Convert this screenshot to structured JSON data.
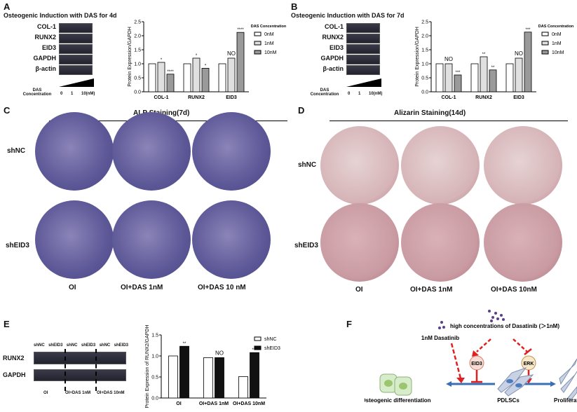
{
  "panelA": {
    "letter": "A",
    "title": "Osteogenic Induction with DAS for 4d",
    "blot_labels": [
      "COL-1",
      "RUNX2",
      "EID3",
      "GAPDH",
      "β-actin"
    ],
    "das_label": "DAS Concentration",
    "doses": [
      "0",
      "1",
      "10(nM)"
    ]
  },
  "panelB": {
    "letter": "B",
    "title": "Osteogenic Induction with DAS for 7d",
    "blot_labels": [
      "COL-1",
      "RUNX2",
      "EID3",
      "GAPDH",
      "β-actin"
    ],
    "das_label": "DAS Concentration",
    "doses": [
      "0",
      "1",
      "10(nM)"
    ]
  },
  "panelC": {
    "letter": "C",
    "title": "ALP Staining(7d)",
    "rows": [
      "shNC",
      "shEID3"
    ],
    "cols": [
      "OI",
      "OI+DAS 1nM",
      "OI+DAS 10 nM"
    ]
  },
  "panelD": {
    "letter": "D",
    "title": "Alizarin Staining(14d)",
    "rows": [
      "shNC",
      "shEID3"
    ],
    "cols": [
      "OI",
      "OI+DAS 1nM",
      "OI+DAS 10nM"
    ]
  },
  "panelE": {
    "letter": "E",
    "lanes": [
      "shNC",
      "shEID3",
      "shNC",
      "shEID3",
      "shNC",
      "shEID3"
    ],
    "blot_labels": [
      "RUNX2",
      "GAPDH"
    ],
    "groups": [
      "OI",
      "OI+DAS 1nM",
      "OI+DAS 10nM"
    ]
  },
  "panelF": {
    "letter": "F",
    "low": "1nM Dasatinib",
    "high": "high concentrations of Dasatinib (＞1nM)",
    "eid3": "EID3",
    "erk": "ERK",
    "osteo": "Osteogenic differentiation",
    "pdlsc": "PDLSCs",
    "prolif": "Proliferation"
  },
  "colors": {
    "white_bar": "#ffffff",
    "light_bar": "#e0e0e0",
    "dark_bar": "#9a9a9a",
    "black_bar": "#111111",
    "arrow_red": "#e02020",
    "arrow_blue": "#3a6fb5"
  },
  "chart_data": [
    {
      "type": "bar",
      "ylabel": "Protein Expression/GAPDH",
      "ylim": [
        0,
        2.5
      ],
      "yticks": [
        "0.0",
        "0.5",
        "1.0",
        "1.5",
        "2.0",
        "2.5"
      ],
      "categories": [
        "COL-1",
        "RUNX2",
        "EID3"
      ],
      "legend_title": "DAS Concentration",
      "legend": "right",
      "series": [
        {
          "name": "0nM",
          "values": [
            1.0,
            1.0,
            1.0
          ]
        },
        {
          "name": "1nM",
          "values": [
            1.05,
            1.2,
            1.2
          ]
        },
        {
          "name": "10nM",
          "values": [
            0.63,
            0.84,
            2.12
          ]
        }
      ],
      "annotations": [
        [
          "",
          "*",
          "****"
        ],
        [
          "",
          "*",
          "*"
        ],
        [
          "",
          "NO",
          "****"
        ]
      ]
    },
    {
      "type": "bar",
      "ylabel": "Protein Expression/GAPDH",
      "ylim": [
        0,
        2.5
      ],
      "yticks": [
        "0.0",
        "0.5",
        "1.0",
        "1.5",
        "2.0",
        "2.5"
      ],
      "categories": [
        "COL-1",
        "RUNX2",
        "EID3"
      ],
      "legend_title": "DAS Concentration",
      "legend": "right",
      "series": [
        {
          "name": "0nM",
          "values": [
            1.0,
            1.0,
            1.0
          ]
        },
        {
          "name": "1nM",
          "values": [
            1.0,
            1.25,
            1.2
          ]
        },
        {
          "name": "10nM",
          "values": [
            0.6,
            0.78,
            2.13
          ]
        }
      ],
      "annotations": [
        [
          "",
          "NO",
          "***"
        ],
        [
          "",
          "**",
          "**"
        ],
        [
          "",
          "NO",
          "***"
        ]
      ]
    },
    {
      "type": "bar",
      "ylabel": "Protein Expression of RUNX2/GAPDH",
      "ylim": [
        0,
        1.5
      ],
      "yticks": [
        "0.0",
        "0.5",
        "1.0",
        "1.5"
      ],
      "categories": [
        "OI",
        "OI+DAS 1nM",
        "OI+DAS 10nM"
      ],
      "legend": "right",
      "series": [
        {
          "name": "shNC",
          "values": [
            1.0,
            0.96,
            0.51
          ]
        },
        {
          "name": "shEID3",
          "values": [
            1.23,
            0.96,
            1.08
          ]
        }
      ],
      "annotations": [
        [
          "",
          "**"
        ],
        [
          "",
          "NO"
        ],
        [
          "",
          "***"
        ]
      ]
    }
  ]
}
